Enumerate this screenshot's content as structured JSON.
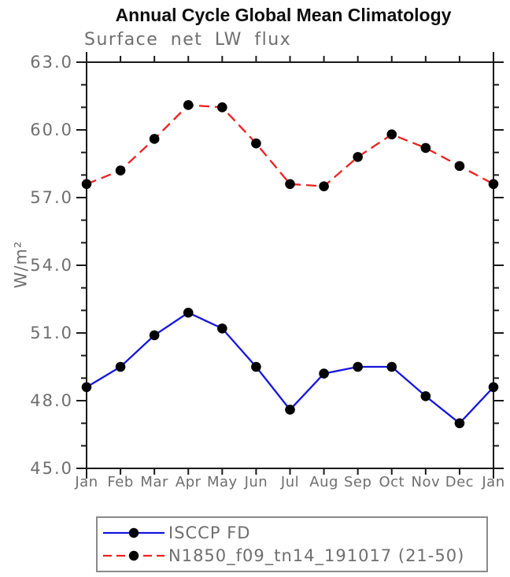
{
  "chart_data": {
    "type": "line",
    "title": "Annual Cycle Global Mean Climatology",
    "subtitle": "Surface net LW flux",
    "ylabel": "W/m²",
    "xlabel": "",
    "categories": [
      "Jan",
      "Feb",
      "Mar",
      "Apr",
      "May",
      "Jun",
      "Jul",
      "Aug",
      "Sep",
      "Oct",
      "Nov",
      "Dec",
      "Jan"
    ],
    "series": [
      {
        "name": "ISCCP FD",
        "color": "#1515dd",
        "line_style": "solid",
        "marker": "filled-circle",
        "marker_color": "#000000",
        "values": [
          48.6,
          49.5,
          50.9,
          51.9,
          51.2,
          49.5,
          47.6,
          49.2,
          49.5,
          49.5,
          48.2,
          47.0,
          48.6
        ]
      },
      {
        "name": "N1850_f09_tn14_191017 (21-50)",
        "color": "#f02020",
        "line_style": "dashed",
        "marker": "filled-circle",
        "marker_color": "#000000",
        "values": [
          57.6,
          58.2,
          59.6,
          61.1,
          61.0,
          59.4,
          57.6,
          57.5,
          58.8,
          59.8,
          59.2,
          58.4,
          57.6
        ]
      }
    ],
    "ylim": [
      45.0,
      63.0
    ],
    "ytick_major_interval": 3.0,
    "ytick_minor_interval": 1.0,
    "ytick_major_labels": [
      "45.0",
      "48.0",
      "51.0",
      "54.0",
      "57.0",
      "60.0",
      "63.0"
    ],
    "grid": false,
    "legend_position": "bottom-left"
  },
  "colors": {
    "axis": "#1a1a1a",
    "gray_text": "#6e6e6e",
    "title_text": "#0d0d0d",
    "legend_border": "#8a8a8a",
    "background": "#ffffff"
  }
}
